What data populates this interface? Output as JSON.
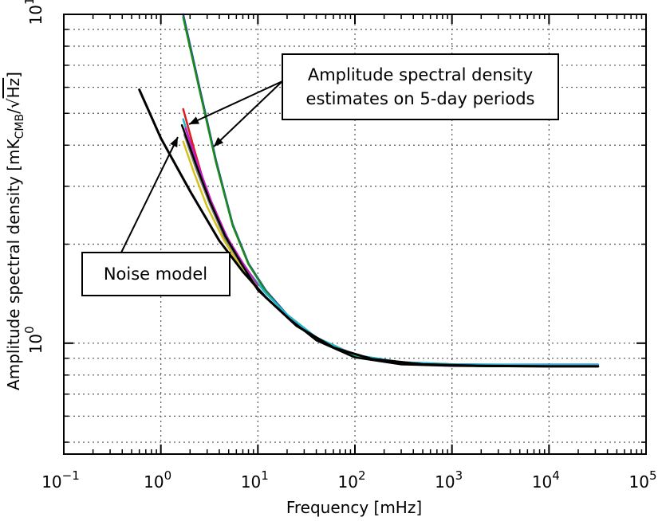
{
  "chart_data": {
    "type": "line",
    "title": "",
    "xlabel": "Frequency [mHz]",
    "ylabel": "Amplitude spectral density [mK_CMB/√Hz]",
    "ylabel_parts": {
      "main": "Amplitude spectral density [mK",
      "sub": "CMB",
      "slash": "/",
      "root": "√",
      "hz": "Hz",
      "close": "]"
    },
    "x_scale": "log",
    "y_scale": "log",
    "xlim": [
      0.1,
      100000
    ],
    "ylim": [
      0.46,
      10
    ],
    "grid": true,
    "x_ticks": [
      {
        "value": 0.1,
        "base": "10",
        "exp": "−1"
      },
      {
        "value": 1,
        "base": "10",
        "exp": "0"
      },
      {
        "value": 10,
        "base": "10",
        "exp": "1"
      },
      {
        "value": 100,
        "base": "10",
        "exp": "2"
      },
      {
        "value": 1000,
        "base": "10",
        "exp": "3"
      },
      {
        "value": 10000,
        "base": "10",
        "exp": "4"
      },
      {
        "value": 100000,
        "base": "10",
        "exp": "5"
      }
    ],
    "y_ticks": [
      {
        "value": 1,
        "base": "10",
        "exp": "0"
      },
      {
        "value": 10,
        "base": "10",
        "exp": "1"
      }
    ],
    "annotations": {
      "spectral": {
        "lines": [
          "Amplitude spectral density",
          "estimates on 5-day periods"
        ]
      },
      "noise": {
        "lines": [
          "Noise model"
        ]
      }
    },
    "series": [
      {
        "color": "#1f3fbf",
        "x": [
          1.7,
          2.5,
          3.7,
          5.5,
          8,
          12,
          20,
          40,
          100,
          300,
          1000,
          3000,
          10000,
          32000
        ],
        "y": [
          10.0,
          6.0,
          3.6,
          2.3,
          1.75,
          1.45,
          1.22,
          1.04,
          0.92,
          0.875,
          0.863,
          0.86,
          0.86,
          0.86
        ]
      },
      {
        "color": "#1b8a1b",
        "x": [
          1.7,
          2.5,
          3.7,
          5.5,
          8,
          12,
          20,
          40,
          100,
          300,
          1000,
          3000,
          10000,
          32000
        ],
        "y": [
          9.8,
          5.9,
          3.55,
          2.28,
          1.74,
          1.44,
          1.21,
          1.03,
          0.915,
          0.872,
          0.86,
          0.858,
          0.857,
          0.857
        ]
      },
      {
        "color": "#20b8c8",
        "x": [
          1.7,
          2.5,
          3.7,
          5.5,
          8,
          12,
          20,
          40,
          100,
          300,
          1000,
          3000,
          10000,
          32000
        ],
        "y": [
          4.8,
          3.3,
          2.45,
          1.95,
          1.65,
          1.42,
          1.22,
          1.04,
          0.92,
          0.875,
          0.862,
          0.859,
          0.858,
          0.858
        ]
      },
      {
        "color": "#e01b1b",
        "x": [
          1.7,
          2.2,
          3,
          4.5,
          6.5,
          9.5
        ],
        "y": [
          5.15,
          3.9,
          2.85,
          2.15,
          1.8,
          1.52
        ]
      },
      {
        "color": "#c71cc7",
        "x": [
          1.8,
          2.4,
          3.3,
          4.8,
          7,
          10
        ],
        "y": [
          4.5,
          3.5,
          2.7,
          2.1,
          1.75,
          1.5
        ]
      },
      {
        "color": "#d4c21a",
        "x": [
          1.7,
          2.2,
          3,
          4.5,
          6.5,
          9.5
        ],
        "y": [
          4.1,
          3.3,
          2.6,
          2.05,
          1.72,
          1.48
        ]
      },
      {
        "color": "#7a7a7a",
        "x": [
          1.75,
          2.3,
          3.2,
          4.6,
          6.8,
          9.8
        ],
        "y": [
          4.3,
          3.4,
          2.65,
          2.08,
          1.73,
          1.49
        ]
      },
      {
        "color": "#000000",
        "x": [
          1.65,
          2.3,
          3.2,
          4.6,
          6.8,
          10,
          20,
          40,
          100,
          300,
          1000,
          3000,
          10000,
          32000
        ],
        "y": [
          4.6,
          3.5,
          2.7,
          2.12,
          1.74,
          1.45,
          1.2,
          1.02,
          0.905,
          0.862,
          0.853,
          0.851,
          0.85,
          0.85
        ]
      },
      {
        "color": "#000000",
        "x": [
          0.6,
          1,
          2,
          4,
          7,
          12,
          25,
          60,
          150,
          500,
          2000,
          10000,
          32000
        ],
        "y": [
          5.9,
          4.2,
          2.9,
          2.05,
          1.65,
          1.38,
          1.13,
          0.97,
          0.895,
          0.862,
          0.853,
          0.85,
          0.85
        ]
      }
    ]
  }
}
